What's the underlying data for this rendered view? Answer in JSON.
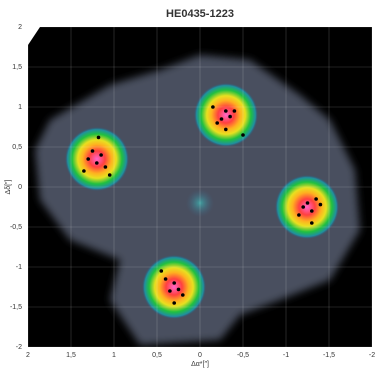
{
  "chart_data": {
    "type": "scatter",
    "title": "HE0435-1223",
    "xlabel": "Δα*[″]",
    "ylabel": "Δδ[″]",
    "x": [
      1.25,
      1.15,
      1.2,
      1.1,
      1.3,
      1.18,
      1.35,
      1.05,
      -0.3,
      -0.25,
      -0.35,
      -0.2,
      -0.4,
      -0.5,
      -0.3,
      -0.15,
      -1.25,
      -1.3,
      -1.2,
      -1.35,
      -1.15,
      -1.4,
      -1.3,
      0.3,
      0.35,
      0.25,
      0.4,
      0.2,
      0.45,
      0.3
    ],
    "values": [
      0.45,
      0.4,
      0.3,
      0.25,
      0.35,
      0.62,
      0.2,
      0.15,
      0.95,
      0.85,
      0.88,
      0.8,
      0.95,
      0.65,
      0.72,
      1.0,
      -0.2,
      -0.3,
      -0.25,
      -0.15,
      -0.35,
      -0.22,
      -0.45,
      -1.2,
      -1.3,
      -1.28,
      -1.15,
      -1.35,
      -1.05,
      -1.45
    ],
    "color": "#000000",
    "xlim": [
      2,
      -2
    ],
    "ylim": [
      -2,
      2
    ],
    "xticks": [
      2,
      {
        "value": 1.5,
        "label": "1,5"
      },
      1,
      {
        "value": 0.5,
        "label": "0,5"
      },
      0,
      {
        "value": -0.5,
        "label": "-0,5"
      },
      -1,
      {
        "value": -1.5,
        "label": "-1,5"
      },
      -2
    ],
    "yticks": [
      2,
      {
        "value": 1.5,
        "label": "1,5"
      },
      1,
      {
        "value": 0.5,
        "label": "0,5"
      },
      0,
      {
        "value": -0.5,
        "label": "-0,5"
      },
      -1,
      {
        "value": -1.5,
        "label": "-1,5"
      },
      -2
    ],
    "grid": true
  }
}
